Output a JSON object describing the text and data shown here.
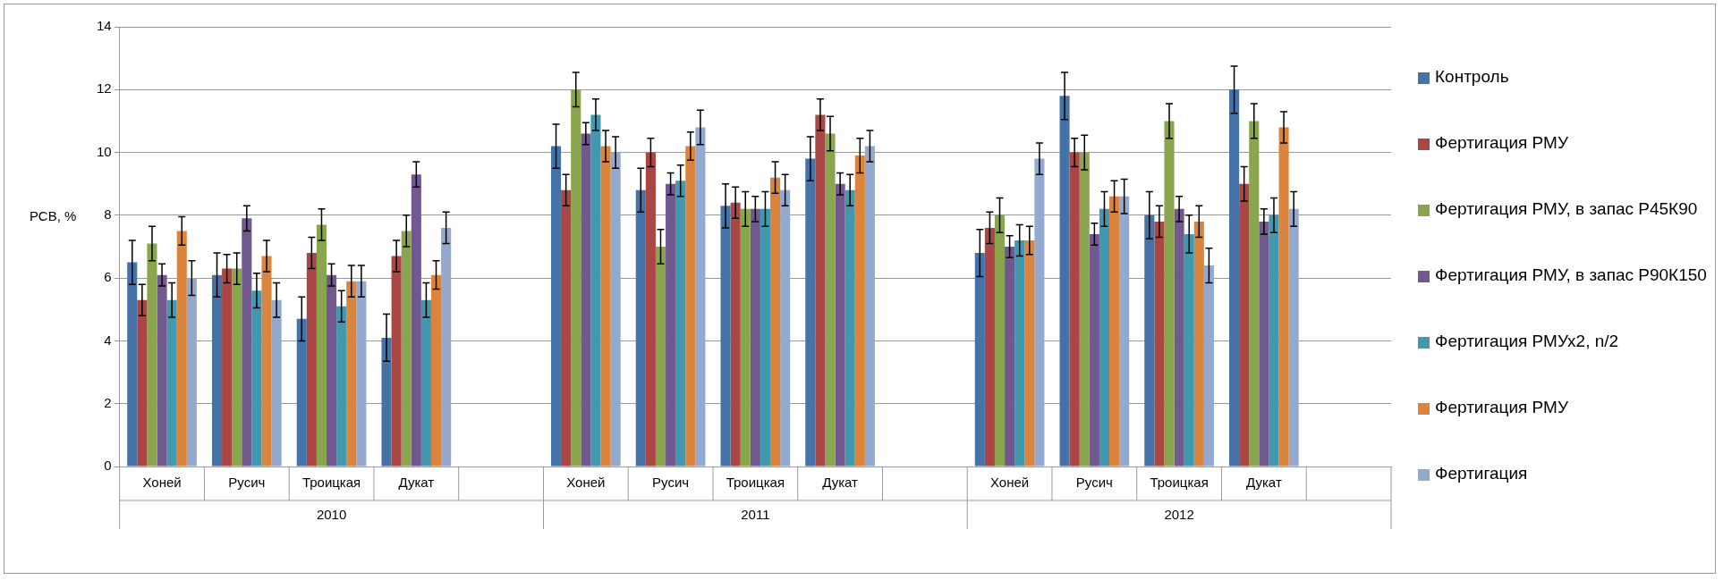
{
  "chart_data": {
    "type": "bar",
    "ylabel": "РСВ, %",
    "categories": [
      "Хоней",
      "Русич",
      "Троицкая",
      "Дукат",
      null,
      "Хоней",
      "Русич",
      "Троицкая",
      "Дукат",
      null,
      "Хоней",
      "Русич",
      "Троицкая",
      "Дукат",
      null
    ],
    "annotations": [
      "2010",
      "2011",
      "2012"
    ],
    "series": [
      {
        "name": "Контроль",
        "color": "#4572a7",
        "values": [
          6.5,
          6.1,
          4.7,
          4.1,
          null,
          10.2,
          8.8,
          8.3,
          9.8,
          null,
          6.8,
          11.8,
          8.0,
          12.0,
          null
        ],
        "errors": [
          0.7,
          0.7,
          0.7,
          0.75,
          null,
          0.7,
          0.7,
          0.7,
          0.7,
          null,
          0.75,
          0.75,
          0.75,
          0.75,
          null
        ]
      },
      {
        "name": "Фертигация РМУ",
        "color": "#aa4643",
        "values": [
          5.3,
          6.3,
          6.8,
          6.7,
          null,
          8.8,
          10.0,
          8.4,
          11.2,
          null,
          7.6,
          10.0,
          7.8,
          9.0,
          null
        ],
        "errors": [
          0.5,
          0.45,
          0.5,
          0.5,
          null,
          0.5,
          0.45,
          0.5,
          0.5,
          null,
          0.5,
          0.45,
          0.5,
          0.55,
          null
        ]
      },
      {
        "name": "Фертигация РМУ, в запас Р45К90",
        "color": "#89a54e",
        "values": [
          7.1,
          6.3,
          7.7,
          7.5,
          null,
          12.0,
          7.0,
          8.2,
          10.6,
          null,
          8.0,
          10.0,
          11.0,
          11.0,
          null
        ],
        "errors": [
          0.55,
          0.5,
          0.5,
          0.5,
          null,
          0.55,
          0.55,
          0.55,
          0.55,
          null,
          0.55,
          0.55,
          0.55,
          0.55,
          null
        ]
      },
      {
        "name": "Фертигация РМУ, в запас Р90К150",
        "color": "#71588f",
        "values": [
          6.1,
          7.9,
          6.1,
          9.3,
          null,
          10.6,
          9.0,
          8.2,
          9.0,
          null,
          7.0,
          7.4,
          8.2,
          7.8,
          null
        ],
        "errors": [
          0.35,
          0.4,
          0.35,
          0.4,
          null,
          0.35,
          0.35,
          0.4,
          0.35,
          null,
          0.35,
          0.35,
          0.4,
          0.4,
          null
        ]
      },
      {
        "name": "Фертигация РМУх2, n/2",
        "color": "#4198af",
        "values": [
          5.3,
          5.6,
          5.1,
          5.3,
          null,
          11.2,
          9.1,
          8.2,
          8.8,
          null,
          7.2,
          8.2,
          7.4,
          8.0,
          null
        ],
        "errors": [
          0.55,
          0.55,
          0.5,
          0.55,
          null,
          0.5,
          0.5,
          0.55,
          0.5,
          null,
          0.5,
          0.55,
          0.6,
          0.55,
          null
        ]
      },
      {
        "name": "Фертигация РМУ",
        "color": "#db843d",
        "values": [
          7.5,
          6.7,
          5.9,
          6.1,
          null,
          10.2,
          10.2,
          9.2,
          9.9,
          null,
          7.2,
          8.6,
          7.8,
          10.8,
          null
        ],
        "errors": [
          0.45,
          0.5,
          0.5,
          0.45,
          null,
          0.5,
          0.45,
          0.5,
          0.55,
          null,
          0.45,
          0.5,
          0.5,
          0.5,
          null
        ]
      },
      {
        "name": "Фертигация",
        "color": "#93a9cf",
        "values": [
          6.0,
          5.3,
          5.9,
          7.6,
          null,
          10.0,
          10.8,
          8.8,
          10.2,
          null,
          9.8,
          8.6,
          6.4,
          8.2,
          null
        ],
        "errors": [
          0.55,
          0.55,
          0.5,
          0.5,
          null,
          0.5,
          0.55,
          0.5,
          0.5,
          null,
          0.5,
          0.55,
          0.55,
          0.55,
          null
        ]
      }
    ],
    "ylim": [
      0,
      14
    ],
    "yticks": [
      0,
      2,
      4,
      6,
      8,
      10,
      12,
      14
    ],
    "grid": "y",
    "legend": "right"
  }
}
